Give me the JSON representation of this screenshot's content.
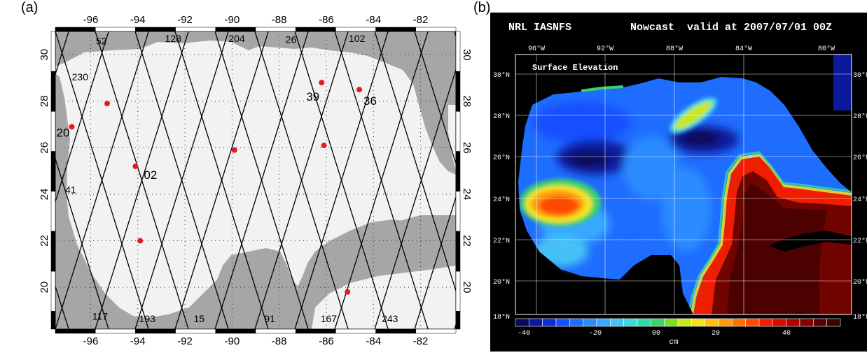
{
  "panel_a": {
    "label": "(a)",
    "lon_ticks": [
      "-96",
      "-94",
      "-92",
      "-90",
      "-88",
      "-86",
      "-84",
      "-82"
    ],
    "lat_ticks": [
      "30",
      "28",
      "26",
      "24",
      "22",
      "20"
    ],
    "track_labels": [
      {
        "text": "52",
        "lon": -95.55,
        "lat": 30.45
      },
      {
        "text": "128",
        "lon": -92.5,
        "lat": 30.55
      },
      {
        "text": "204",
        "lon": -89.8,
        "lat": 30.55
      },
      {
        "text": "26",
        "lon": -87.5,
        "lat": 30.5
      },
      {
        "text": "102",
        "lon": -84.7,
        "lat": 30.55
      },
      {
        "text": "230",
        "lon": -96.45,
        "lat": 28.9
      },
      {
        "text": "41",
        "lon": -96.85,
        "lat": 24.05
      },
      {
        "text": "117",
        "lon": -95.6,
        "lat": 18.6
      },
      {
        "text": "193",
        "lon": -93.6,
        "lat": 18.5
      },
      {
        "text": "15",
        "lon": -91.4,
        "lat": 18.5
      },
      {
        "text": "91",
        "lon": -88.4,
        "lat": 18.5
      },
      {
        "text": "167",
        "lon": -85.9,
        "lat": 18.5
      },
      {
        "text": "243",
        "lon": -83.3,
        "lat": 18.5
      }
    ],
    "stations": [
      {
        "id": "",
        "lon": -95.3,
        "lat": 27.9
      },
      {
        "id": "20",
        "lon": -96.8,
        "lat": 26.9
      },
      {
        "id": "02",
        "lon": -94.1,
        "lat": 25.2
      },
      {
        "id": "",
        "lon": -93.9,
        "lat": 22.0
      },
      {
        "id": "",
        "lon": -89.9,
        "lat": 25.9
      },
      {
        "id": "39",
        "lon": -86.2,
        "lat": 28.8
      },
      {
        "id": "36",
        "lon": -84.6,
        "lat": 28.5
      },
      {
        "id": "",
        "lon": -86.1,
        "lat": 26.1
      },
      {
        "id": "",
        "lon": -85.1,
        "lat": 19.8
      }
    ],
    "colors": {
      "land": "#a6a6a6",
      "sea": "#f2f2f2",
      "track": "#000000",
      "station": "#e41a1c"
    }
  },
  "panel_b": {
    "label": "(b)",
    "header_left": "NRL IASNFS",
    "header_right": "Nowcast  valid at 2007/07/01 00Z",
    "field_title": "Surface Elevation",
    "lon_ticks": [
      "96°W",
      "92°W",
      "88°W",
      "84°W",
      "80°W"
    ],
    "lat_ticks": [
      "30°N",
      "28°N",
      "26°N",
      "24°N",
      "22°N",
      "20°N",
      "18°N"
    ],
    "colorbar_ticks": [
      "-40",
      "-20",
      "00",
      "20",
      "40"
    ],
    "colorbar_unit": "cm",
    "colorbar_colors": [
      "#0a0a5a",
      "#0b1a9c",
      "#0a2fd0",
      "#1550ff",
      "#1f6dff",
      "#2a8cff",
      "#38a8ff",
      "#45c2f5",
      "#3fd8e0",
      "#33d6a8",
      "#3ad26a",
      "#7ddc2a",
      "#c7e81e",
      "#f4e21a",
      "#ffc012",
      "#ff9a0c",
      "#ff7006",
      "#ff4a02",
      "#f01e00",
      "#d80a00",
      "#b00000",
      "#860000",
      "#5c0000",
      "#3b0000"
    ]
  }
}
